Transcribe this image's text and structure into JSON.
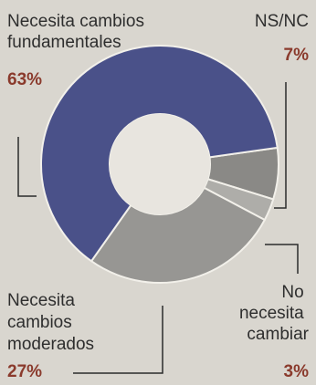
{
  "chart_data": {
    "type": "pie",
    "donut": true,
    "slices": [
      {
        "name": "Necesita cambios fundamentales",
        "label_lines": [
          "Necesita cambios",
          "fundamentales"
        ],
        "value": 63,
        "value_label": "63%",
        "color": "#4a5189"
      },
      {
        "name": "NS/NC",
        "label_lines": [
          "NS/NC"
        ],
        "value": 7,
        "value_label": "7%",
        "color": "#8a8986"
      },
      {
        "name": "No necesita cambiar",
        "label_lines": [
          "No",
          "necesita",
          "cambiar"
        ],
        "value": 3,
        "value_label": "3%",
        "color": "#aeada9"
      },
      {
        "name": "Necesita cambios moderados",
        "label_lines": [
          "Necesita",
          "cambios",
          "moderados"
        ],
        "value": 27,
        "value_label": "27%",
        "color": "#979693"
      }
    ]
  },
  "colors": {
    "background": "#d9d6cf",
    "percent_text": "#8a3a2c",
    "label_text": "#2e2e2e"
  }
}
